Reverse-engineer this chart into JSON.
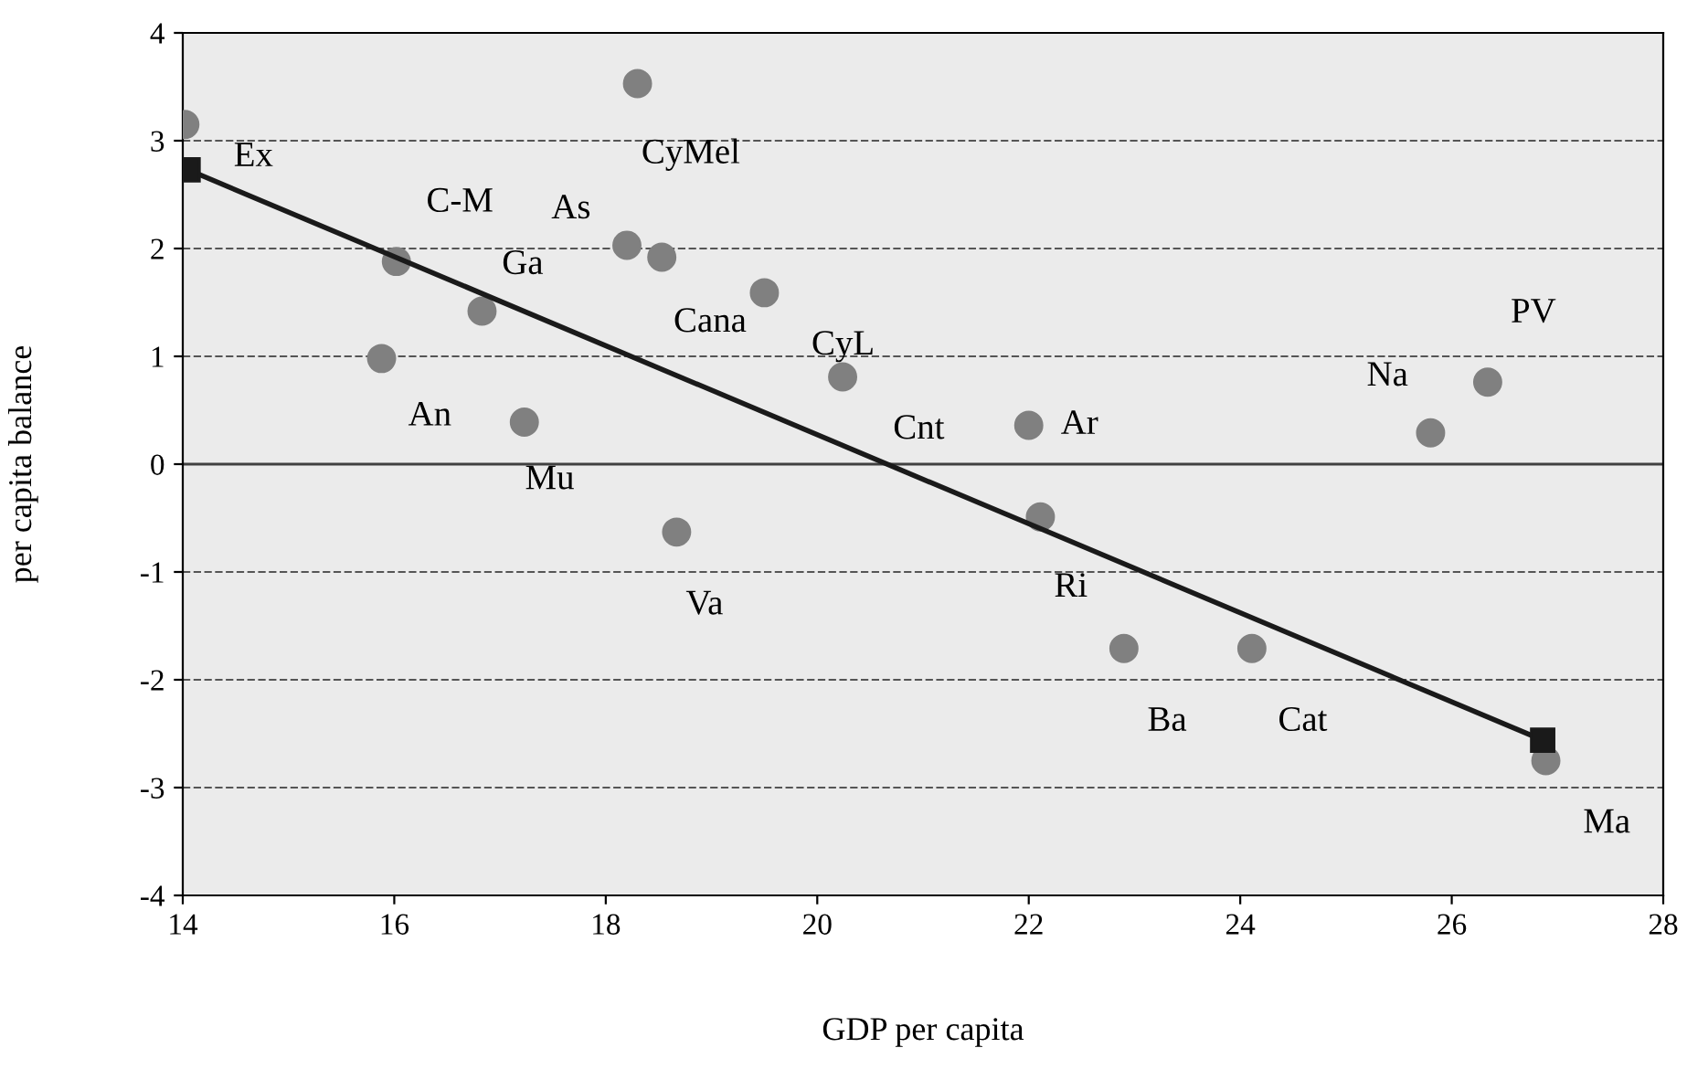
{
  "chart_data": {
    "type": "scatter",
    "xlabel": "GDP per capita",
    "ylabel": "per capita balance",
    "xlim": [
      14,
      28
    ],
    "xticks": [
      14,
      16,
      18,
      20,
      22,
      24,
      26,
      28
    ],
    "ylim": [
      -4,
      4
    ],
    "yticks": [
      -4,
      -3,
      -2,
      -1,
      0,
      1,
      2,
      3,
      4
    ],
    "grid": "y",
    "legend": false,
    "ref_lines": [
      {
        "axis": "y",
        "value": 0,
        "color": "#404040",
        "line_style": "solid"
      }
    ],
    "series": [
      {
        "color": "#808080",
        "marker": "circle",
        "x": [
          14.02,
          18.3,
          16.02,
          18.2,
          18.53,
          16.83,
          15.88,
          17.23,
          19.5,
          20.24,
          18.67,
          22.0,
          22.11,
          22.9,
          24.11,
          25.8,
          26.34,
          26.89
        ],
        "values": [
          3.15,
          3.53,
          1.88,
          2.03,
          1.92,
          1.42,
          0.98,
          0.39,
          1.59,
          0.81,
          -0.63,
          0.36,
          -0.49,
          -1.71,
          -1.71,
          0.29,
          0.76,
          -2.75
        ]
      },
      {
        "type": "line",
        "color": "#1a1a1a",
        "marker": "square",
        "line_style": "solid",
        "x": [
          14.05,
          26.86
        ],
        "values": [
          2.73,
          -2.56
        ]
      }
    ],
    "annotations": [
      {
        "text": "Ex",
        "x": 14.02,
        "y": 3.15
      },
      {
        "text": "CyMel",
        "x": 18.3,
        "y": 3.53
      },
      {
        "text": "C-M",
        "x": 16.02,
        "y": 1.88
      },
      {
        "text": "As",
        "x": 18.2,
        "y": 2.03
      },
      {
        "text": "Cana",
        "x": 18.53,
        "y": 1.92
      },
      {
        "text": "Ga",
        "x": 16.83,
        "y": 1.42
      },
      {
        "text": "An",
        "x": 15.88,
        "y": 0.98
      },
      {
        "text": "Mu",
        "x": 17.23,
        "y": 0.39
      },
      {
        "text": "CyL",
        "x": 19.5,
        "y": 1.59
      },
      {
        "text": "Cnt",
        "x": 20.24,
        "y": 0.81
      },
      {
        "text": "Va",
        "x": 18.67,
        "y": -0.63
      },
      {
        "text": "Ar",
        "x": 22.0,
        "y": 0.36
      },
      {
        "text": "Ri",
        "x": 22.11,
        "y": -0.49
      },
      {
        "text": "Ba",
        "x": 22.9,
        "y": -1.71
      },
      {
        "text": "Cat",
        "x": 24.11,
        "y": -1.71
      },
      {
        "text": "Na",
        "x": 25.8,
        "y": 0.29
      },
      {
        "text": "PV",
        "x": 26.34,
        "y": 0.76
      },
      {
        "text": "Ma",
        "x": 26.89,
        "y": -2.75
      }
    ]
  }
}
